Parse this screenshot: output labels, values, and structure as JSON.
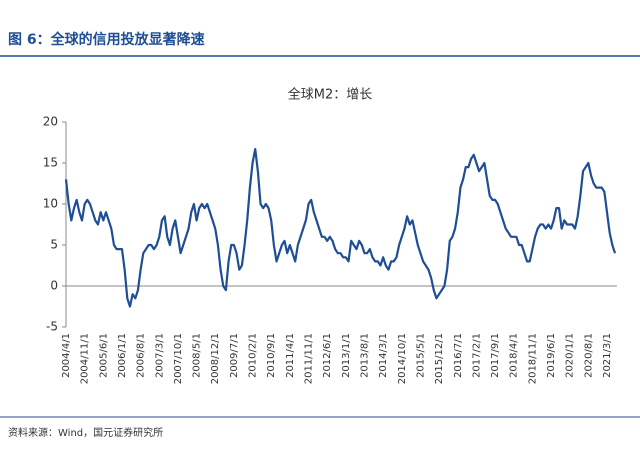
{
  "header": {
    "title": "图 6：全球的信用投放显著降速"
  },
  "chart_data": {
    "type": "line",
    "title": "全球M2：增长",
    "color": "#1f4e96",
    "ylim": [
      -5,
      20
    ],
    "yticks": [
      -5,
      0,
      5,
      10,
      15,
      20
    ],
    "categories": [
      "2004/4/1",
      null,
      null,
      null,
      null,
      null,
      null,
      "2004/11/1",
      null,
      null,
      null,
      null,
      null,
      null,
      "2005/6/1",
      null,
      null,
      null,
      null,
      null,
      null,
      "2006/1/1",
      null,
      null,
      null,
      null,
      null,
      null,
      "2006/8/1",
      null,
      null,
      null,
      null,
      null,
      null,
      "2007/3/1",
      null,
      null,
      null,
      null,
      null,
      null,
      "2007/10/1",
      null,
      null,
      null,
      null,
      null,
      null,
      "2008/5/1",
      null,
      null,
      null,
      null,
      null,
      null,
      "2008/12/1",
      null,
      null,
      null,
      null,
      null,
      null,
      "2009/7/1",
      null,
      null,
      null,
      null,
      null,
      null,
      "2010/2/1",
      null,
      null,
      null,
      null,
      null,
      null,
      "2010/9/1",
      null,
      null,
      null,
      null,
      null,
      null,
      "2011/4/1",
      null,
      null,
      null,
      null,
      null,
      null,
      "2011/11/1",
      null,
      null,
      null,
      null,
      null,
      null,
      "2012/6/1",
      null,
      null,
      null,
      null,
      null,
      null,
      "2013/1/1",
      null,
      null,
      null,
      null,
      null,
      null,
      "2013/8/1",
      null,
      null,
      null,
      null,
      null,
      null,
      "2014/3/1",
      null,
      null,
      null,
      null,
      null,
      null,
      "2014/10/1",
      null,
      null,
      null,
      null,
      null,
      null,
      "2015/5/1",
      null,
      null,
      null,
      null,
      null,
      null,
      "2015/12/1",
      null,
      null,
      null,
      null,
      null,
      null,
      "2016/7/1",
      null,
      null,
      null,
      null,
      null,
      null,
      "2017/2/1",
      null,
      null,
      null,
      null,
      null,
      null,
      "2017/9/1",
      null,
      null,
      null,
      null,
      null,
      null,
      "2018/4/1",
      null,
      null,
      null,
      null,
      null,
      null,
      "2018/11/1",
      null,
      null,
      null,
      null,
      null,
      null,
      "2019/6/1",
      null,
      null,
      null,
      null,
      null,
      null,
      "2020/1/1",
      null,
      null,
      null,
      null,
      null,
      null,
      "2020/8/1",
      null,
      null,
      null,
      null,
      null,
      null,
      "2021/3/1",
      null,
      null,
      null
    ],
    "values": [
      13,
      10,
      8,
      9.5,
      10.5,
      9,
      8,
      10,
      10.5,
      10,
      9,
      8,
      7.5,
      9,
      8,
      9,
      8,
      7,
      5,
      4.5,
      4.5,
      4.5,
      2,
      -1.5,
      -2.5,
      -1,
      -1.5,
      -0.5,
      2,
      4,
      4.5,
      5,
      5,
      4.5,
      5,
      6,
      8,
      8.5,
      6,
      5,
      7,
      8,
      6,
      4,
      5,
      6,
      7,
      9,
      10,
      8,
      9.5,
      10,
      9.5,
      10,
      9,
      8,
      7,
      5,
      2,
      0,
      -0.5,
      3,
      5,
      5,
      4,
      2,
      2.5,
      5,
      8,
      12,
      15,
      16.7,
      14,
      10,
      9.5,
      10,
      9.5,
      8,
      5,
      3,
      4,
      5,
      5.5,
      4,
      5,
      4,
      3,
      5,
      6,
      7,
      8,
      10,
      10.5,
      9,
      8,
      7,
      6,
      6,
      5.5,
      6,
      5.5,
      4.5,
      4,
      4,
      3.5,
      3.5,
      3,
      5.5,
      5,
      4.5,
      5.5,
      5,
      4,
      4,
      4.5,
      3.5,
      3,
      3,
      2.5,
      3.5,
      2.5,
      2,
      3,
      3,
      3.5,
      5,
      6,
      7,
      8.5,
      7.5,
      8,
      6.5,
      5,
      4,
      3,
      2.5,
      2,
      1,
      -0.5,
      -1.5,
      -1,
      -0.5,
      0,
      2,
      5.5,
      6,
      7,
      9,
      12,
      13,
      14.5,
      14.5,
      15.5,
      16,
      15,
      14,
      14.5,
      15,
      13,
      11,
      10.5,
      10.5,
      10,
      9,
      8,
      7,
      6.5,
      6,
      6,
      6,
      5,
      5,
      4,
      3,
      3,
      4.5,
      6,
      7,
      7.5,
      7.5,
      7,
      7.5,
      7,
      8,
      9.5,
      9.5,
      7,
      8,
      7.5,
      7.5,
      7.5,
      7,
      8.5,
      11,
      14,
      14.5,
      15,
      13.5,
      12.5,
      12,
      12,
      12,
      11.5,
      9,
      6.5,
      5,
      4
    ]
  },
  "footer": {
    "source": "资料来源：Wind，国元证券研究所"
  }
}
